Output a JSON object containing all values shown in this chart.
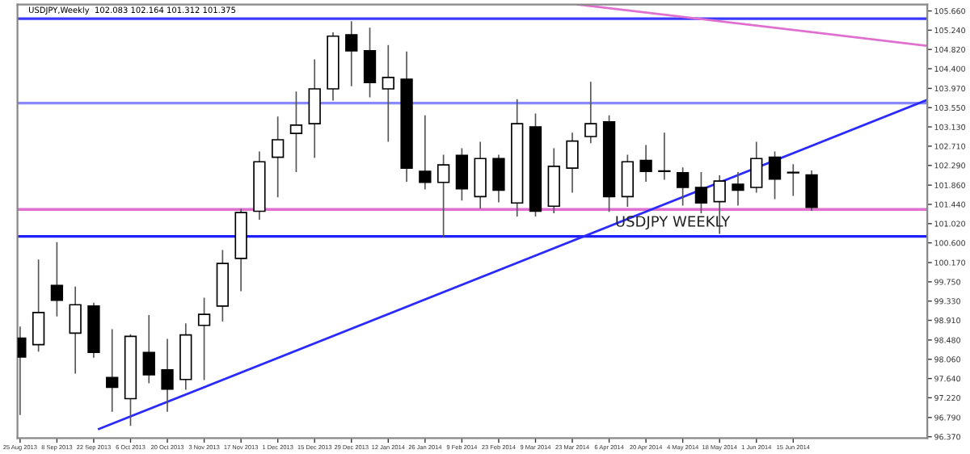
{
  "chart_data": {
    "type": "candlestick",
    "title": "USDJPY,Weekly  102.083 102.164 101.312 101.375",
    "annotations": [
      "USDJPY WEEKLY"
    ],
    "x": [
      "2013-08-25",
      "2013-09-01",
      "2013-09-08",
      "2013-09-15",
      "2013-09-22",
      "2013-09-29",
      "2013-10-06",
      "2013-10-13",
      "2013-10-20",
      "2013-10-27",
      "2013-11-03",
      "2013-11-10",
      "2013-11-17",
      "2013-11-24",
      "2013-12-01",
      "2013-12-08",
      "2013-12-15",
      "2013-12-22",
      "2013-12-29",
      "2014-01-05",
      "2014-01-12",
      "2014-01-19",
      "2014-01-26",
      "2014-02-02",
      "2014-02-09",
      "2014-02-16",
      "2014-02-23",
      "2014-03-02",
      "2014-03-09",
      "2014-03-16",
      "2014-03-23",
      "2014-03-30",
      "2014-04-06",
      "2014-04-13",
      "2014-04-20",
      "2014-04-27",
      "2014-05-04",
      "2014-05-11",
      "2014-05-18",
      "2014-05-25",
      "2014-06-01",
      "2014-06-08",
      "2014-06-15",
      "2014-06-22"
    ],
    "ohlc": [
      [
        98.52,
        98.76,
        96.86,
        98.11
      ],
      [
        98.38,
        100.22,
        98.24,
        99.08
      ],
      [
        99.67,
        100.6,
        99.01,
        99.35
      ],
      [
        98.63,
        99.63,
        97.76,
        99.25
      ],
      [
        99.22,
        99.28,
        98.11,
        98.21
      ],
      [
        97.66,
        98.7,
        96.93,
        97.45
      ],
      [
        97.2,
        98.59,
        96.62,
        98.56
      ],
      [
        98.21,
        99.01,
        97.55,
        97.72
      ],
      [
        97.83,
        98.49,
        96.93,
        97.41
      ],
      [
        97.62,
        98.83,
        97.41,
        98.59
      ],
      [
        98.8,
        99.39,
        97.62,
        99.04
      ],
      [
        99.22,
        100.43,
        98.9,
        100.15
      ],
      [
        100.26,
        101.33,
        99.56,
        101.26
      ],
      [
        101.29,
        102.58,
        101.12,
        102.37
      ],
      [
        102.47,
        103.34,
        101.61,
        102.85
      ],
      [
        102.99,
        103.89,
        102.16,
        103.17
      ],
      [
        103.2,
        104.59,
        102.47,
        103.96
      ],
      [
        103.96,
        105.18,
        103.72,
        105.11
      ],
      [
        105.14,
        105.42,
        104.03,
        104.79
      ],
      [
        104.79,
        105.28,
        103.79,
        104.1
      ],
      [
        103.96,
        104.9,
        102.82,
        104.21
      ],
      [
        104.17,
        104.76,
        101.95,
        102.23
      ],
      [
        102.16,
        103.37,
        101.78,
        101.92
      ],
      [
        101.92,
        102.51,
        100.74,
        102.3
      ],
      [
        102.51,
        102.65,
        101.54,
        101.78
      ],
      [
        101.61,
        102.79,
        101.36,
        102.44
      ],
      [
        102.44,
        102.51,
        101.5,
        101.75
      ],
      [
        101.47,
        103.72,
        101.19,
        103.2
      ],
      [
        103.13,
        103.41,
        101.19,
        101.29
      ],
      [
        101.4,
        102.65,
        101.26,
        102.27
      ],
      [
        102.23,
        102.99,
        101.71,
        102.82
      ],
      [
        102.92,
        104.1,
        102.79,
        103.2
      ],
      [
        103.24,
        103.37,
        101.29,
        101.61
      ],
      [
        101.61,
        102.51,
        101.4,
        102.37
      ],
      [
        102.4,
        102.72,
        101.95,
        102.16
      ],
      [
        102.16,
        102.99,
        101.99,
        102.16
      ],
      [
        102.13,
        102.23,
        101.43,
        101.81
      ],
      [
        101.81,
        102.13,
        101.26,
        101.47
      ],
      [
        101.5,
        102.06,
        100.81,
        101.95
      ],
      [
        101.88,
        102.13,
        101.43,
        101.75
      ],
      [
        101.81,
        102.79,
        101.71,
        102.44
      ],
      [
        102.47,
        102.58,
        101.57,
        101.99
      ],
      [
        102.13,
        102.3,
        101.64,
        102.13
      ],
      [
        102.083,
        102.164,
        101.312,
        101.375
      ]
    ],
    "series": [
      {
        "type": "line",
        "color": "#2b2bff",
        "x": [
          "2013-09-24",
          "2014-08-05"
        ],
        "values": [
          96.54,
          103.72
        ]
      },
      {
        "type": "line",
        "color": "#e070d0",
        "x": [
          "2014-03-25",
          "2014-08-05"
        ],
        "values": [
          105.8,
          104.9
        ]
      }
    ],
    "ref_lines": [
      {
        "axis": "y",
        "value": 105.49,
        "color": "#3a3aff"
      },
      {
        "axis": "y",
        "value": 103.65,
        "color": "#8888ff"
      },
      {
        "axis": "y",
        "value": 101.33,
        "color": "#e070d0"
      },
      {
        "axis": "y",
        "value": 100.74,
        "color": "#2020ff"
      }
    ],
    "xlim": [
      "2013-08-24",
      "2014-08-05"
    ],
    "xticks": [
      {
        "value": "2013-08-25",
        "label": "25 Aug 2013"
      },
      {
        "value": "2013-09-08",
        "label": "8 Sep 2013"
      },
      {
        "value": "2013-09-22",
        "label": "22 Sep 2013"
      },
      {
        "value": "2013-10-06",
        "label": "6 Oct 2013"
      },
      {
        "value": "2013-10-20",
        "label": "20 Oct 2013"
      },
      {
        "value": "2013-11-03",
        "label": "3 Nov 2013"
      },
      {
        "value": "2013-11-17",
        "label": "17 Nov 2013"
      },
      {
        "value": "2013-12-01",
        "label": "1 Dec 2013"
      },
      {
        "value": "2013-12-15",
        "label": "15 Dec 2013"
      },
      {
        "value": "2013-12-29",
        "label": "29 Dec 2013"
      },
      {
        "value": "2014-01-12",
        "label": "12 Jan 2014"
      },
      {
        "value": "2014-01-26",
        "label": "26 Jan 2014"
      },
      {
        "value": "2014-02-09",
        "label": "9 Feb 2014"
      },
      {
        "value": "2014-02-23",
        "label": "23 Feb 2014"
      },
      {
        "value": "2014-03-09",
        "label": "9 Mar 2014"
      },
      {
        "value": "2014-03-23",
        "label": "23 Mar 2014"
      },
      {
        "value": "2014-04-06",
        "label": "6 Apr 2014"
      },
      {
        "value": "2014-04-20",
        "label": "20 Apr 2014"
      },
      {
        "value": "2014-05-04",
        "label": "4 May 2014"
      },
      {
        "value": "2014-05-18",
        "label": "18 May 2014"
      },
      {
        "value": "2014-06-01",
        "label": "1 Jun 2014"
      },
      {
        "value": "2014-06-15",
        "label": "15 Jun 2014"
      }
    ],
    "ylim": [
      96.34,
      105.8
    ],
    "yticks": [
      {
        "value": 96.37,
        "label": "96.370"
      },
      {
        "value": 96.79,
        "label": "96.790"
      },
      {
        "value": 97.22,
        "label": "97.220"
      },
      {
        "value": 97.64,
        "label": "97.640"
      },
      {
        "value": 98.06,
        "label": "98.060"
      },
      {
        "value": 98.48,
        "label": "98.480"
      },
      {
        "value": 98.91,
        "label": "98.910"
      },
      {
        "value": 99.33,
        "label": "99.330"
      },
      {
        "value": 99.75,
        "label": "99.750"
      },
      {
        "value": 100.17,
        "label": "100.170"
      },
      {
        "value": 100.6,
        "label": "100.600"
      },
      {
        "value": 101.02,
        "label": "101.020"
      },
      {
        "value": 101.44,
        "label": "101.440"
      },
      {
        "value": 101.86,
        "label": "101.860"
      },
      {
        "value": 102.29,
        "label": "102.290"
      },
      {
        "value": 102.71,
        "label": "102.710"
      },
      {
        "value": 103.13,
        "label": "103.130"
      },
      {
        "value": 103.55,
        "label": "103.550"
      },
      {
        "value": 103.97,
        "label": "103.970"
      },
      {
        "value": 104.4,
        "label": "104.400"
      },
      {
        "value": 104.82,
        "label": "104.820"
      },
      {
        "value": 105.24,
        "label": "105.240"
      },
      {
        "value": 105.66,
        "label": "105.660"
      }
    ],
    "grid": false
  }
}
